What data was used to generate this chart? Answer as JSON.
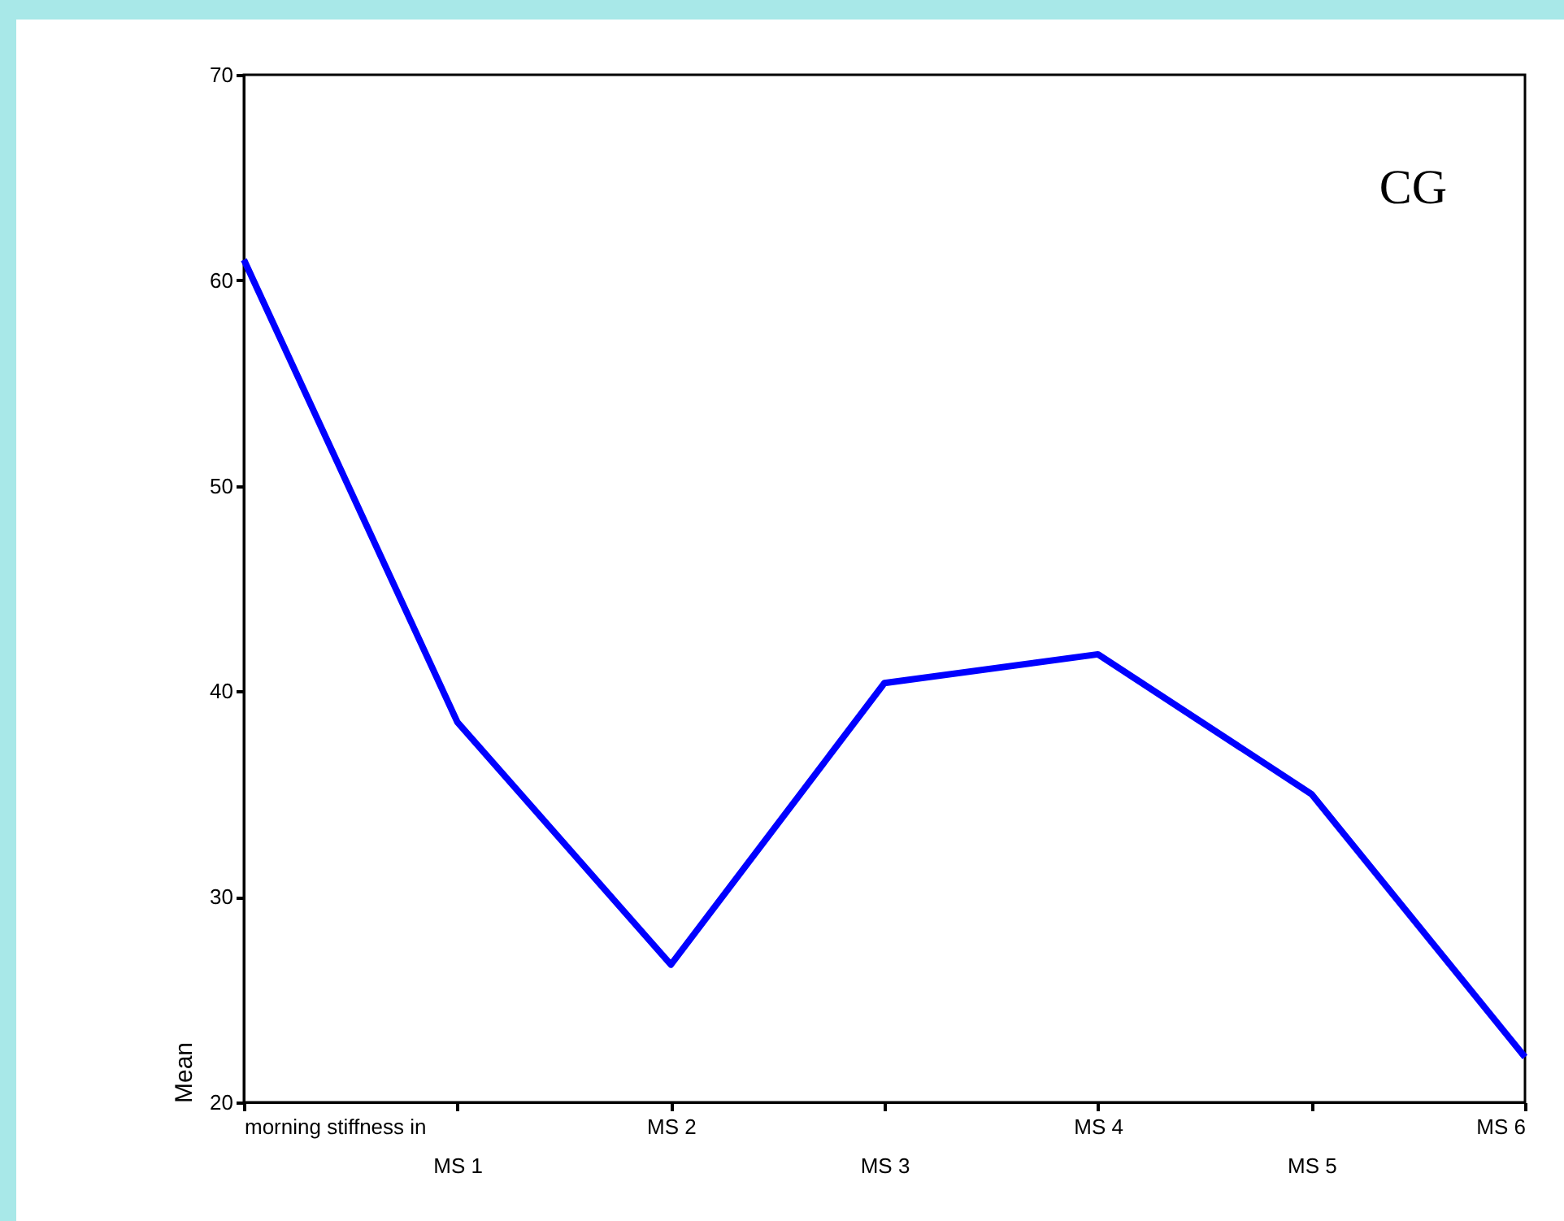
{
  "chart_data": {
    "type": "line",
    "ylabel": "Mean",
    "categories": [
      "morning stiffness in",
      "MS 1",
      "MS 2",
      "MS 3",
      "MS 4",
      "MS 5",
      "MS 6"
    ],
    "series": [
      {
        "color": "#0000ff",
        "values": [
          61,
          38.5,
          26.7,
          40.4,
          41.8,
          35,
          22.2
        ]
      }
    ],
    "ylim": [
      20,
      70
    ],
    "yticks": [
      20,
      30,
      40,
      50,
      60,
      70
    ],
    "annotations": [
      "CG"
    ],
    "grid": false,
    "marker": "none",
    "line_style": "solid"
  }
}
